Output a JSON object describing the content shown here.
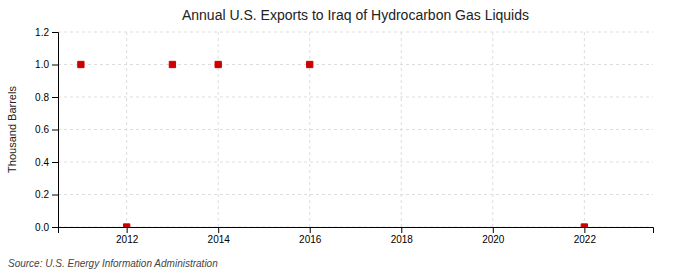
{
  "chart_data": {
    "type": "scatter",
    "title": "Annual U.S. Exports to Iraq of Hydrocarbon Gas Liquids",
    "ylabel": "Thousand Barrels",
    "source": "Source: U.S. Energy Information Administration",
    "x": [
      2011,
      2012,
      2013,
      2014,
      2016,
      2022
    ],
    "values": [
      1.0,
      0.0,
      1.0,
      1.0,
      1.0,
      0.0
    ],
    "color": "#cc0000",
    "marker": "square",
    "xlim": [
      2010.5,
      2023.5
    ],
    "xticks": [
      2012,
      2014,
      2016,
      2018,
      2020,
      2022
    ],
    "ylim": [
      0.0,
      1.2
    ],
    "yticks": [
      {
        "value": 0.0,
        "label": "0.0"
      },
      0.2,
      0.4,
      0.6,
      0.8,
      {
        "value": 1.0,
        "label": "1.0"
      },
      1.2
    ],
    "grid": true
  }
}
